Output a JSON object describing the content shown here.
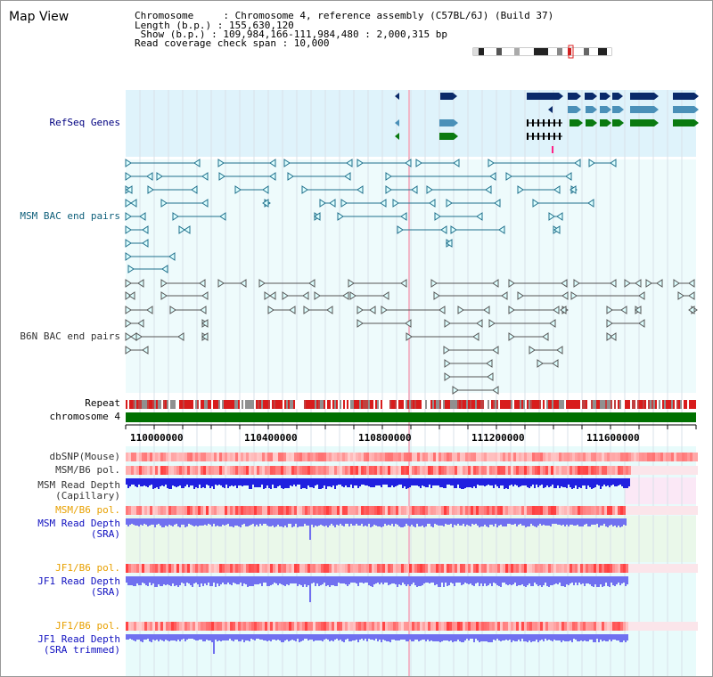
{
  "title": "Map View",
  "info": {
    "chromosome": "Chromosome     : Chromosome 4, reference assembly (C57BL/6J) (Build 37)",
    "length": "Length (b.p.) : 155,630,120",
    "show": " Show (b.p.) : 109,984,166-111,984,480 : 2,000,315 bp",
    "coverage": "Read coverage check span : 10,000"
  },
  "tracks": {
    "refseq": "RefSeq Genes",
    "msm_bac": "MSM BAC end pairs",
    "b6n_bac": "B6N BAC end pairs",
    "repeat": "Repeat",
    "chromosome": "chromosome 4",
    "dbsnp": "dbSNP(Mouse)",
    "msm_b6_pol": "MSM/B6 pol.",
    "msm_depth_cap_1": "MSM Read Depth",
    "msm_depth_cap_2": "(Capillary)",
    "msm_b6_pol_2": "MSM/B6 pol.",
    "msm_depth_sra_1": "MSM Read Depth",
    "msm_depth_sra_2": "(SRA)",
    "jf1_b6_pol": "JF1/B6 pol.",
    "jf1_depth_sra_1": "JF1 Read Depth",
    "jf1_depth_sra_2": "(SRA)",
    "jf1_b6_pol_2": "JF1/B6 pol.",
    "jf1_depth_trim_1": "JF1 Read Depth",
    "jf1_depth_trim_2": "(SRA trimmed)"
  },
  "axis": {
    "ticks": [
      "110000000",
      "110400000",
      "110800000",
      "111200000",
      "111600000"
    ]
  },
  "colors": {
    "refseq_navy": "#0a2a6a",
    "refseq_blue": "#4a90b8",
    "refseq_green": "#0a7a10",
    "msm_teal": "#1f6f8b",
    "b6n_gray": "#555555",
    "chrom_green": "#007000",
    "depth_blue": "#2020e0",
    "depth_light": "#7070f0"
  }
}
